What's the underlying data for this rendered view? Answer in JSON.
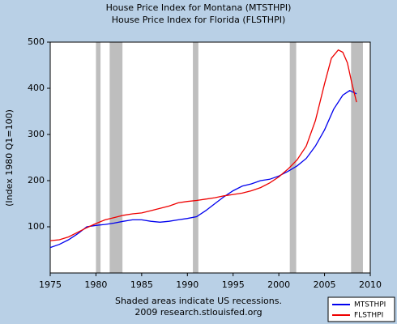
{
  "chart_data": {
    "type": "line",
    "title": [
      "House Price Index for Montana (MTSTHPI)",
      "House Price Index for Florida (FLSTHPI)"
    ],
    "y_label": "(Index 1980 Q1=100)",
    "notes": [
      "Shaded areas indicate US recessions.",
      "2009 research.stlouisfed.org"
    ],
    "xlim": [
      1975,
      2010
    ],
    "xticks": [
      1975,
      1980,
      1985,
      1990,
      1995,
      2000,
      2005,
      2010
    ],
    "ylim": [
      0,
      500
    ],
    "yticks": [
      100,
      200,
      300,
      400,
      500
    ],
    "grid": false,
    "legend": "bottom-right",
    "recessions": [
      [
        1980.0,
        1980.5
      ],
      [
        1981.5,
        1982.9
      ],
      [
        1990.6,
        1991.2
      ],
      [
        2001.2,
        2001.9
      ],
      [
        2007.9,
        2009.2
      ]
    ],
    "recession_color": "#bebebe",
    "series": [
      {
        "name": "MTSTHPI",
        "color": "#0000ee",
        "x": [
          1975,
          1976,
          1977,
          1978,
          1979,
          1980,
          1981,
          1982,
          1983,
          1984,
          1985,
          1986,
          1987,
          1988,
          1989,
          1990,
          1991,
          1992,
          1993,
          1994,
          1995,
          1996,
          1997,
          1998,
          1999,
          2000,
          2001,
          2002,
          2003,
          2004,
          2005,
          2006,
          2007,
          2007.75,
          2008.5
        ],
        "values": [
          55,
          62,
          72,
          85,
          100,
          103,
          105,
          108,
          112,
          115,
          115,
          112,
          110,
          112,
          115,
          118,
          122,
          135,
          150,
          165,
          178,
          188,
          193,
          200,
          203,
          210,
          220,
          232,
          248,
          275,
          310,
          355,
          385,
          395,
          388
        ]
      },
      {
        "name": "FLSTHPI",
        "color": "#ee0000",
        "x": [
          1975,
          1976,
          1977,
          1978,
          1979,
          1980,
          1981,
          1982,
          1983,
          1984,
          1985,
          1986,
          1987,
          1988,
          1989,
          1990,
          1991,
          1992,
          1993,
          1994,
          1995,
          1996,
          1997,
          1998,
          1999,
          2000,
          2001,
          2002,
          2003,
          2004,
          2005,
          2005.75,
          2006.5,
          2007,
          2007.5,
          2008,
          2008.5
        ],
        "values": [
          70,
          72,
          78,
          88,
          98,
          107,
          115,
          120,
          125,
          128,
          130,
          135,
          140,
          145,
          152,
          155,
          157,
          160,
          163,
          167,
          170,
          173,
          178,
          185,
          195,
          208,
          225,
          245,
          275,
          330,
          410,
          465,
          483,
          478,
          455,
          410,
          370
        ]
      }
    ]
  }
}
